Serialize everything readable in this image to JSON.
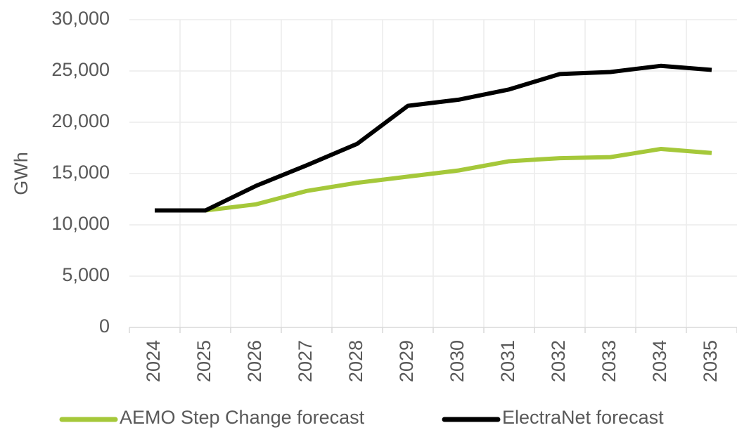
{
  "chart_data": {
    "type": "line",
    "y_label": "GWh",
    "categories": [
      "2024",
      "2025",
      "2026",
      "2027",
      "2028",
      "2029",
      "2030",
      "2031",
      "2032",
      "2033",
      "2034",
      "2035"
    ],
    "series": [
      {
        "name": "AEMO Step Change forecast",
        "color": "#a5c83a",
        "values": [
          null,
          11400,
          12000,
          13300,
          14100,
          14700,
          15300,
          16200,
          16500,
          16600,
          17400,
          17000
        ]
      },
      {
        "name": "ElectraNet forecast",
        "color": "#000000",
        "values": [
          11400,
          11400,
          13800,
          15800,
          17900,
          21600,
          22200,
          23200,
          24700,
          24900,
          25500,
          25100
        ]
      }
    ],
    "ylim": [
      0,
      30000
    ],
    "yticks": [
      0,
      {
        "value": 5000,
        "label": "5,000"
      },
      {
        "value": 10000,
        "label": "10,000"
      },
      {
        "value": 15000,
        "label": "15,000"
      },
      {
        "value": 20000,
        "label": "20,000"
      },
      {
        "value": 25000,
        "label": "25,000"
      },
      {
        "value": 30000,
        "label": "30,000"
      }
    ],
    "grid": true,
    "legend": "bottom"
  }
}
